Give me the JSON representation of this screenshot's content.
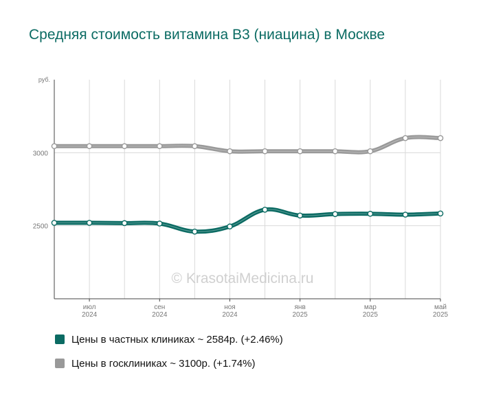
{
  "chart_data": {
    "type": "line",
    "title": "Средняя стоимость витамина B3 (ниацина) в Москве",
    "y_unit_label": "руб.",
    "ylim": [
      2000,
      3500
    ],
    "y_ticks": [
      {
        "value": 2500,
        "label": "2500"
      },
      {
        "value": 3000,
        "label": "3000"
      }
    ],
    "x_ticks": [
      {
        "index": 1,
        "label": [
          "июл",
          "2024"
        ]
      },
      {
        "index": 3,
        "label": [
          "сен",
          "2024"
        ]
      },
      {
        "index": 5,
        "label": [
          "ноя",
          "2024"
        ]
      },
      {
        "index": 7,
        "label": [
          "янв",
          "2025"
        ]
      },
      {
        "index": 9,
        "label": [
          "мар",
          "2025"
        ]
      },
      {
        "index": 11,
        "label": [
          "май",
          "2025"
        ]
      }
    ],
    "x": [
      "июн 2024",
      "июл 2024",
      "авг 2024",
      "сен 2024",
      "окт 2024",
      "ноя 2024",
      "дек 2024",
      "янв 2025",
      "фев 2025",
      "мар 2025",
      "апр 2025",
      "май 2025"
    ],
    "series": [
      {
        "name": "Цены в частных клиниках",
        "color": "#0b6b63",
        "values": [
          2520,
          2520,
          2518,
          2515,
          2460,
          2495,
          2610,
          2570,
          2580,
          2582,
          2576,
          2584
        ]
      },
      {
        "name": "Цены в госклиниках",
        "color": "#999999",
        "values": [
          3045,
          3045,
          3045,
          3045,
          3045,
          3010,
          3010,
          3010,
          3010,
          3010,
          3100,
          3100
        ]
      }
    ],
    "grid": true,
    "watermark": "© KrasotaiMedicina.ru"
  },
  "legend": [
    {
      "label": "Цены в частных клиниках ~ 2584р. (+2.46%)",
      "color": "#0b6b63"
    },
    {
      "label": "Цены в госклиниках ~ 3100р. (+1.74%)",
      "color": "#999999"
    }
  ]
}
